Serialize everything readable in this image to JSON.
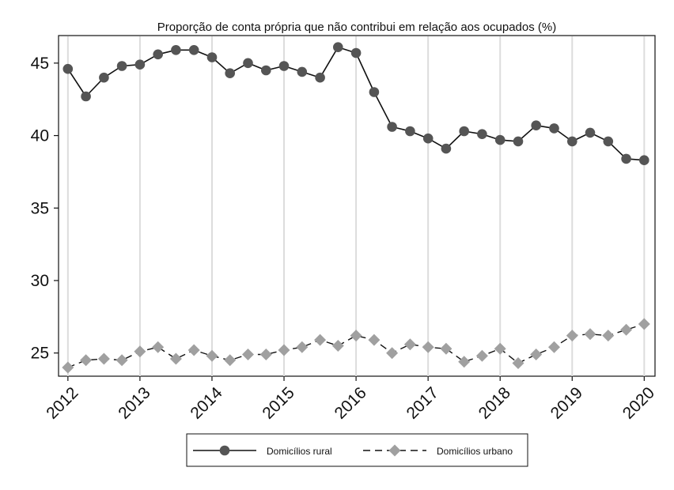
{
  "chart_data": {
    "type": "line",
    "title": "Proporção de conta própria que não contribui em relação aos ocupados (%)",
    "xlabel": "",
    "ylabel": "",
    "x": [
      2012.0,
      2012.25,
      2012.5,
      2012.75,
      2013.0,
      2013.25,
      2013.5,
      2013.75,
      2014.0,
      2014.25,
      2014.5,
      2014.75,
      2015.0,
      2015.25,
      2015.5,
      2015.75,
      2016.0,
      2016.25,
      2016.5,
      2016.75,
      2017.0,
      2017.25,
      2017.5,
      2017.75,
      2018.0,
      2018.25,
      2018.5,
      2018.75,
      2019.0,
      2019.25,
      2019.5,
      2019.75,
      2020.0
    ],
    "xticks": [
      2012,
      2013,
      2014,
      2015,
      2016,
      2017,
      2018,
      2019,
      2020
    ],
    "xlim": [
      2011.87,
      2020.15
    ],
    "yticks": [
      25,
      30,
      35,
      40,
      45
    ],
    "ylim": [
      23.4,
      46.9
    ],
    "grid": "vertical lines at year ticks",
    "legend_position": "bottom",
    "series": [
      {
        "name": "Domicílios rural",
        "color": "#555555",
        "line_style": "solid",
        "marker": "circle",
        "values": [
          44.6,
          42.7,
          44.0,
          44.8,
          44.9,
          45.6,
          45.9,
          45.9,
          45.4,
          44.3,
          45.0,
          44.5,
          44.8,
          44.4,
          44.0,
          46.1,
          45.7,
          43.0,
          40.6,
          40.3,
          39.8,
          39.1,
          40.3,
          40.1,
          39.7,
          39.6,
          40.7,
          40.5,
          39.6,
          40.2,
          39.6,
          38.4,
          38.3
        ]
      },
      {
        "name": "Domicílios urbano",
        "color": "#a0a0a0",
        "line_style": "dashed",
        "marker": "diamond",
        "values": [
          24.0,
          24.5,
          24.6,
          24.5,
          25.1,
          25.4,
          24.6,
          25.2,
          24.8,
          24.5,
          24.9,
          24.9,
          25.2,
          25.4,
          25.9,
          25.5,
          26.2,
          25.9,
          25.0,
          25.6,
          25.4,
          25.3,
          24.4,
          24.8,
          25.3,
          24.3,
          24.9,
          25.4,
          26.2,
          26.3,
          26.2,
          26.6,
          27.0
        ]
      }
    ]
  }
}
